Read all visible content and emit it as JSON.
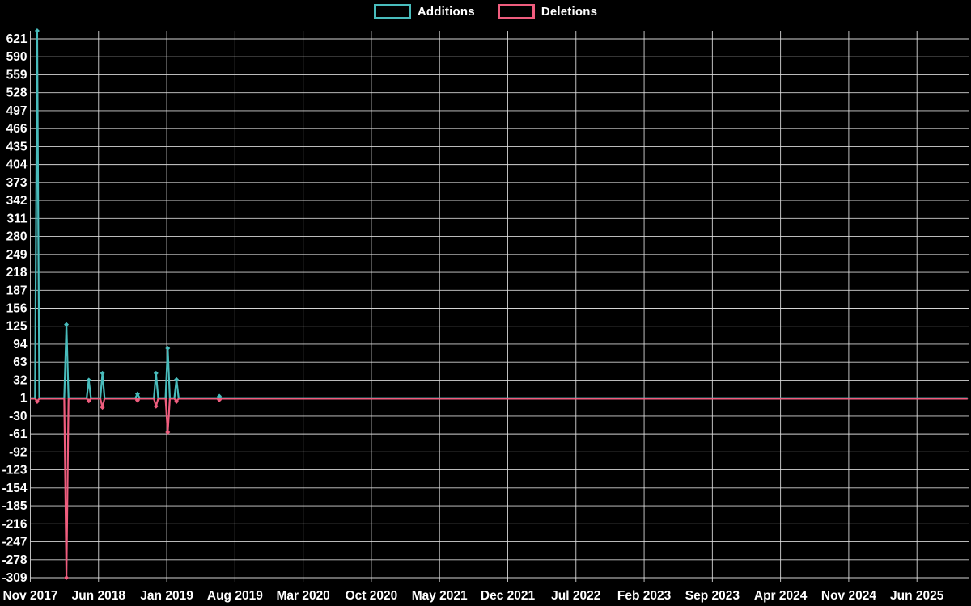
{
  "chart_data": {
    "type": "line",
    "title": "",
    "background_color": "#000000",
    "grid_color": "#e0e0e0",
    "text_color": "#ffffff",
    "grid": true,
    "legend_position": "top-center",
    "legend": [
      {
        "label": "Additions",
        "color": "#49bcbc"
      },
      {
        "label": "Deletions",
        "color": "#ef5d7e"
      }
    ],
    "x_tick_labels": [
      "Nov 2017",
      "Jun 2018",
      "Jan 2019",
      "Aug 2019",
      "Mar 2020",
      "Oct 2020",
      "May 2021",
      "Dec 2021",
      "Jul 2022",
      "Feb 2023",
      "Sep 2023",
      "Apr 2024",
      "Nov 2024",
      "Jun 2025"
    ],
    "x_tick_interval_months": 7,
    "x_range_months": [
      0,
      96.2
    ],
    "y_tick_values": [
      621,
      590,
      559,
      528,
      497,
      466,
      435,
      404,
      373,
      342,
      311,
      280,
      249,
      218,
      187,
      156,
      125,
      94,
      63,
      32,
      1,
      -30,
      -61,
      -92,
      -123,
      -154,
      -185,
      -216,
      -247,
      -278,
      -309
    ],
    "y_range": [
      -309,
      621
    ],
    "series": [
      {
        "name": "Additions",
        "color": "#49bcbc",
        "baseline_value": 1,
        "points": [
          {
            "month": 0.7,
            "date": "2017-11",
            "value": 635
          },
          {
            "month": 3.7,
            "date": "2018-02",
            "value": 128
          },
          {
            "month": 6.0,
            "date": "2018-05",
            "value": 32
          },
          {
            "month": 7.4,
            "date": "2018-06",
            "value": 44
          },
          {
            "month": 11.0,
            "date": "2018-10",
            "value": 8
          },
          {
            "month": 12.9,
            "date": "2018-12",
            "value": 44
          },
          {
            "month": 14.1,
            "date": "2019-01",
            "value": 87
          },
          {
            "month": 15.0,
            "date": "2019-02",
            "value": 33
          },
          {
            "month": 19.4,
            "date": "2019-06",
            "value": 4
          }
        ]
      },
      {
        "name": "Deletions",
        "color": "#ef5d7e",
        "baseline_value": 0,
        "points": [
          {
            "month": 0.7,
            "date": "2017-11",
            "value": -5
          },
          {
            "month": 3.7,
            "date": "2018-02",
            "value": -309
          },
          {
            "month": 6.0,
            "date": "2018-05",
            "value": -4
          },
          {
            "month": 7.4,
            "date": "2018-06",
            "value": -15
          },
          {
            "month": 11.0,
            "date": "2018-10",
            "value": -3
          },
          {
            "month": 12.9,
            "date": "2018-12",
            "value": -13
          },
          {
            "month": 14.1,
            "date": "2019-01",
            "value": -58
          },
          {
            "month": 15.0,
            "date": "2019-02",
            "value": -5
          },
          {
            "month": 19.4,
            "date": "2019-06",
            "value": -2
          }
        ]
      }
    ]
  }
}
